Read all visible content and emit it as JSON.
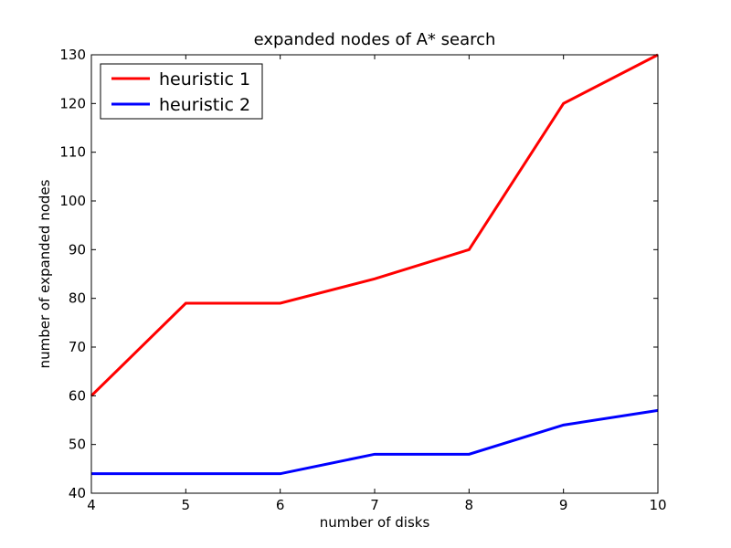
{
  "chart_data": {
    "type": "line",
    "title": "expanded nodes of A* search",
    "xlabel": "number of disks",
    "ylabel": "number of expanded nodes",
    "x": [
      4,
      5,
      6,
      7,
      8,
      9,
      10
    ],
    "xlim": [
      4,
      10
    ],
    "ylim": [
      40,
      130
    ],
    "xticks": [
      4,
      5,
      6,
      7,
      8,
      9,
      10
    ],
    "yticks": [
      40,
      50,
      60,
      70,
      80,
      90,
      100,
      110,
      120,
      130
    ],
    "grid": false,
    "legend_position": "top-left",
    "series": [
      {
        "name": "heuristic 1",
        "color": "#ff0000",
        "values": [
          60,
          79,
          79,
          84,
          90,
          120,
          130
        ]
      },
      {
        "name": "heuristic 2",
        "color": "#0000ff",
        "values": [
          44,
          44,
          44,
          48,
          48,
          54,
          57
        ]
      }
    ]
  }
}
